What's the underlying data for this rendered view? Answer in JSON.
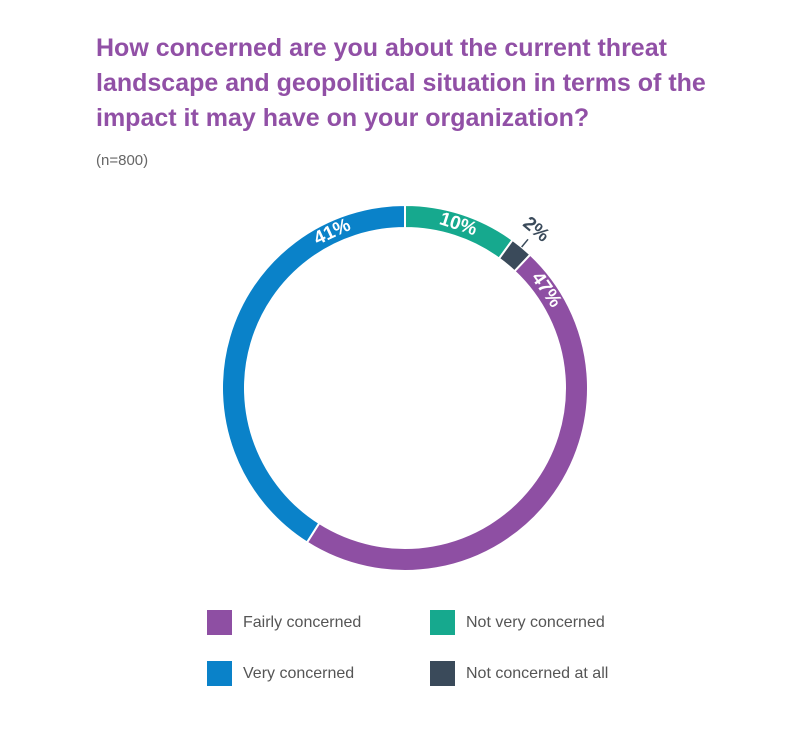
{
  "chart_data": {
    "type": "pie",
    "title_lines": [
      "How concerned are you about the current threat",
      "landscape and geopolitical situation in terms of the",
      "impact it may have on your organization?"
    ],
    "subtitle": "(n=800)",
    "categories": [
      "Not very concerned",
      "Not concerned at all",
      "Fairly concerned",
      "Very concerned"
    ],
    "values": [
      10,
      2,
      47,
      41
    ],
    "value_labels": [
      "10%",
      "2%",
      "47%",
      "41%"
    ],
    "colors": [
      "#16a98e",
      "#3a4a5a",
      "#8e4fa3",
      "#0a82c9"
    ],
    "donut": true
  }
}
